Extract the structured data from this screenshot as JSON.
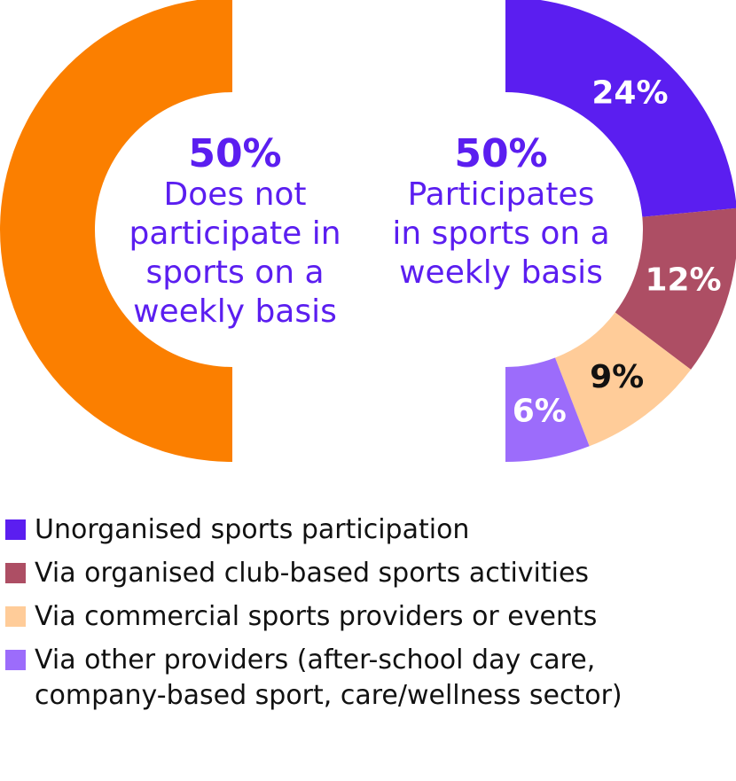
{
  "chart_data": {
    "type": "pie",
    "left_donut": {
      "value": 50,
      "big_label": "50%",
      "description": "Does not\nparticipate in\nsports on a\nweekly basis",
      "color": "#fb7f00"
    },
    "right_donut": {
      "value": 50,
      "big_label": "50%",
      "description": "Participates\nin sports on a\nweekly basis",
      "slices": [
        {
          "name": "Unorganised sports participation",
          "value": 24,
          "label": "24%",
          "color": "#5b1ef0",
          "label_color": "#ffffff"
        },
        {
          "name": "Via organised club-based sports activities",
          "value": 12,
          "label": "12%",
          "color": "#ad4e64",
          "label_color": "#ffffff"
        },
        {
          "name": "Via commercial sports providers or events",
          "value": 9,
          "label": "9%",
          "color": "#ffcc99",
          "label_color": "#111111"
        },
        {
          "name": "Via other providers (after-school day care,\ncompany-based sport, care/wellness sector)",
          "value": 6,
          "label": "6%",
          "color": "#9c6cfb",
          "label_color": "#ffffff"
        }
      ]
    },
    "accent_color": "#5b1ef0"
  }
}
